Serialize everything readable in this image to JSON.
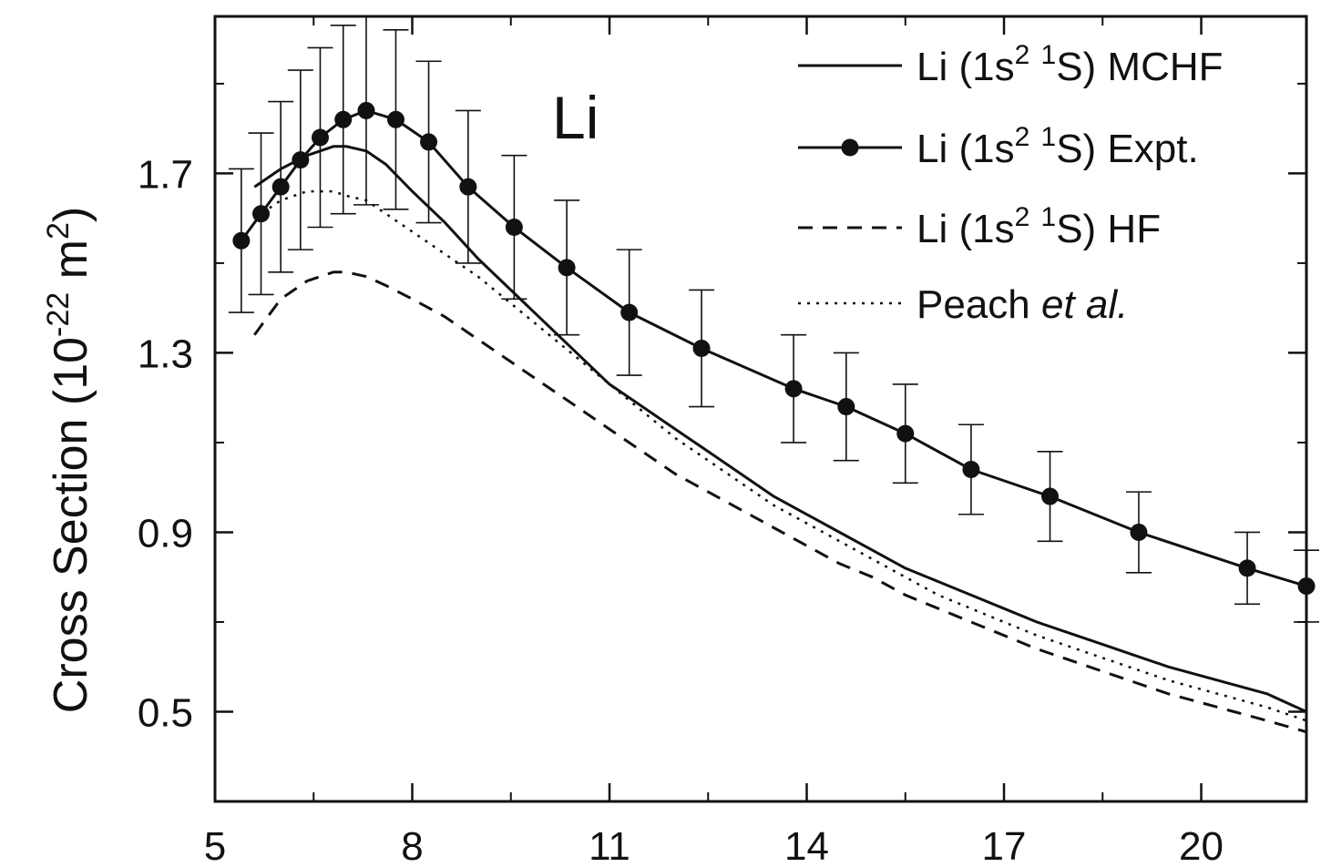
{
  "chart_data": {
    "type": "line",
    "panel_label": "Li",
    "ylabel_main": "Cross Section (10",
    "ylabel_exp": "-22",
    "ylabel_unit": " m",
    "ylabel_unit_exp": "2",
    "ylabel_close": ")",
    "xlabel": "",
    "xlim": [
      5,
      21.6
    ],
    "ylim": [
      0.3,
      2.05
    ],
    "x_ticks": [
      5,
      8,
      11,
      14,
      17,
      20
    ],
    "y_ticks": [
      0.5,
      0.9,
      1.3,
      1.7
    ],
    "colors": {
      "line": "#111111",
      "axis": "#111111"
    },
    "legend_position": "top-right",
    "legend": [
      {
        "key": "mchf",
        "style": "solid",
        "parts": [
          "Li (1s",
          "2",
          " ",
          "1",
          "S) MCHF"
        ]
      },
      {
        "key": "expt",
        "style": "solid-marker",
        "parts": [
          "Li (1s",
          "2",
          " ",
          "1",
          "S) Expt."
        ]
      },
      {
        "key": "hf",
        "style": "dashed",
        "parts": [
          "Li (1s",
          "2",
          " ",
          "1",
          "S) HF"
        ]
      },
      {
        "key": "peach",
        "style": "dotted",
        "parts": [
          "Peach ",
          "et al."
        ]
      }
    ],
    "series": [
      {
        "key": "mchf",
        "name": "Li (1s2 1S) MCHF",
        "style": "solid",
        "x": [
          5.6,
          6.0,
          6.4,
          6.8,
          7.0,
          7.3,
          7.6,
          8.0,
          8.5,
          9.0,
          9.5,
          10.0,
          10.5,
          11.0,
          11.5,
          12.0,
          12.5,
          13.0,
          13.5,
          14.0,
          14.5,
          15.0,
          15.5,
          16.0,
          16.5,
          17.0,
          17.5,
          18.0,
          18.5,
          19.0,
          19.5,
          20.0,
          20.5,
          21.0,
          21.6
        ],
        "y": [
          1.67,
          1.71,
          1.74,
          1.76,
          1.76,
          1.75,
          1.72,
          1.66,
          1.59,
          1.51,
          1.44,
          1.37,
          1.3,
          1.23,
          1.18,
          1.13,
          1.08,
          1.03,
          0.98,
          0.94,
          0.9,
          0.86,
          0.82,
          0.79,
          0.76,
          0.73,
          0.7,
          0.675,
          0.65,
          0.625,
          0.6,
          0.58,
          0.56,
          0.54,
          0.5
        ]
      },
      {
        "key": "peach",
        "name": "Peach et al.",
        "style": "dotted",
        "x": [
          5.6,
          6.0,
          6.4,
          6.8,
          7.0,
          7.3,
          7.6,
          8.0,
          8.5,
          9.0,
          9.5,
          10.0,
          10.5,
          11.0,
          11.5,
          12.0,
          12.5,
          13.0,
          13.5,
          14.0,
          14.5,
          15.0,
          15.5,
          16.0,
          16.5,
          17.0,
          17.5,
          18.0,
          18.5,
          19.0,
          19.5,
          20.0,
          20.5,
          21.0,
          21.6
        ],
        "y": [
          1.6,
          1.64,
          1.66,
          1.66,
          1.65,
          1.64,
          1.61,
          1.57,
          1.52,
          1.47,
          1.41,
          1.35,
          1.29,
          1.23,
          1.17,
          1.11,
          1.06,
          1.01,
          0.96,
          0.92,
          0.88,
          0.84,
          0.8,
          0.76,
          0.73,
          0.7,
          0.67,
          0.645,
          0.62,
          0.595,
          0.57,
          0.55,
          0.53,
          0.51,
          0.48
        ]
      },
      {
        "key": "hf",
        "name": "Li (1s2 1S) HF",
        "style": "dashed",
        "x": [
          5.6,
          6.0,
          6.4,
          6.8,
          7.0,
          7.3,
          7.6,
          8.0,
          8.5,
          9.0,
          9.5,
          10.0,
          10.5,
          11.0,
          11.5,
          12.0,
          12.5,
          13.0,
          13.5,
          14.0,
          14.5,
          15.0,
          15.5,
          16.0,
          16.5,
          17.0,
          17.5,
          18.0,
          18.5,
          19.0,
          19.5,
          20.0,
          20.5,
          21.0,
          21.6
        ],
        "y": [
          1.34,
          1.42,
          1.46,
          1.48,
          1.48,
          1.47,
          1.45,
          1.42,
          1.38,
          1.33,
          1.28,
          1.23,
          1.18,
          1.13,
          1.08,
          1.03,
          0.99,
          0.95,
          0.91,
          0.87,
          0.83,
          0.8,
          0.76,
          0.73,
          0.7,
          0.67,
          0.64,
          0.615,
          0.59,
          0.565,
          0.54,
          0.52,
          0.5,
          0.48,
          0.455
        ]
      },
      {
        "key": "expt",
        "name": "Li (1s2 1S) Expt.",
        "style": "solid-marker",
        "x": [
          5.4,
          5.7,
          6.0,
          6.3,
          6.6,
          6.95,
          7.3,
          7.75,
          8.25,
          8.85,
          9.55,
          10.35,
          11.3,
          12.4,
          13.8,
          14.6,
          15.5,
          16.5,
          17.7,
          19.05,
          20.7,
          21.6
        ],
        "y": [
          1.55,
          1.61,
          1.67,
          1.73,
          1.78,
          1.82,
          1.84,
          1.82,
          1.77,
          1.67,
          1.58,
          1.49,
          1.39,
          1.31,
          1.22,
          1.18,
          1.12,
          1.04,
          0.98,
          0.9,
          0.82,
          0.78
        ],
        "err": [
          0.16,
          0.18,
          0.19,
          0.2,
          0.2,
          0.21,
          0.21,
          0.2,
          0.18,
          0.17,
          0.16,
          0.15,
          0.14,
          0.13,
          0.12,
          0.12,
          0.11,
          0.1,
          0.1,
          0.09,
          0.08,
          0.08
        ]
      }
    ]
  }
}
